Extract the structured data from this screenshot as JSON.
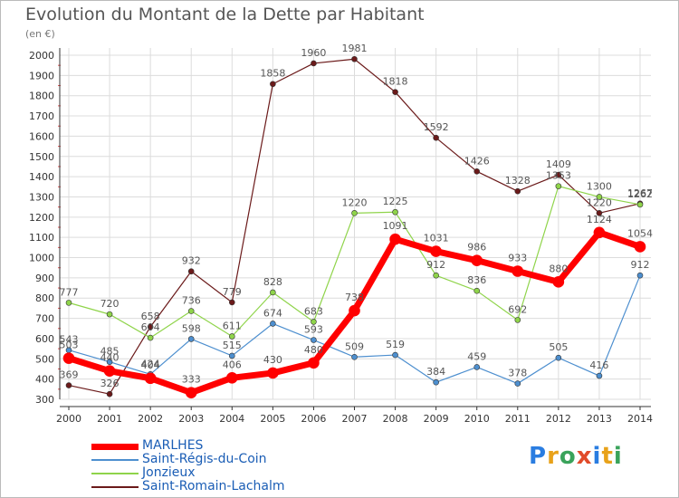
{
  "page": {
    "title": "Evolution du Montant de la Dette par Habitant",
    "subtitle": "(en €)",
    "logo_text": "Proxiti"
  },
  "chart_data": {
    "type": "line",
    "title": "Evolution du Montant de la Dette par Habitant",
    "subtitle": "(en €)",
    "x": [
      2000,
      2001,
      2002,
      2003,
      2004,
      2005,
      2006,
      2007,
      2008,
      2009,
      2010,
      2011,
      2012,
      2013,
      2014
    ],
    "ylim": [
      300,
      2000
    ],
    "yticks": [
      300,
      400,
      500,
      600,
      700,
      800,
      900,
      1000,
      1100,
      1200,
      1300,
      1400,
      1500,
      1600,
      1700,
      1800,
      1900,
      2000
    ],
    "grid": true,
    "legend_position": "bottom-left",
    "series": [
      {
        "name": "Saint-Romain-Lachalm",
        "color": "#6b1a1a",
        "width": 1.2,
        "marker": 3,
        "values": [
          369,
          326,
          658,
          932,
          779,
          1858,
          1960,
          1981,
          1818,
          1592,
          1426,
          1328,
          1409,
          1220,
          1267
        ]
      },
      {
        "name": "Jonzieux",
        "color": "#8fd44a",
        "width": 1.2,
        "marker": 3,
        "values": [
          777,
          720,
          604,
          736,
          611,
          828,
          683,
          1220,
          1225,
          912,
          836,
          692,
          1353,
          1300,
          1262
        ]
      },
      {
        "name": "Saint-Régis-du-Coin",
        "color": "#4d8fcf",
        "width": 1.2,
        "marker": 3,
        "values": [
          543,
          485,
          424,
          598,
          515,
          674,
          593,
          509,
          519,
          384,
          459,
          378,
          505,
          416,
          912
        ]
      },
      {
        "name": "MARLHES",
        "color": "#ff0000",
        "width": 7,
        "marker": 6,
        "values": [
          503,
          440,
          404,
          333,
          406,
          430,
          480,
          738,
          1091,
          1031,
          986,
          933,
          880,
          1124,
          1054
        ]
      }
    ],
    "legend_order": [
      "MARLHES",
      "Saint-Régis-du-Coin",
      "Jonzieux",
      "Saint-Romain-Lachalm"
    ]
  }
}
